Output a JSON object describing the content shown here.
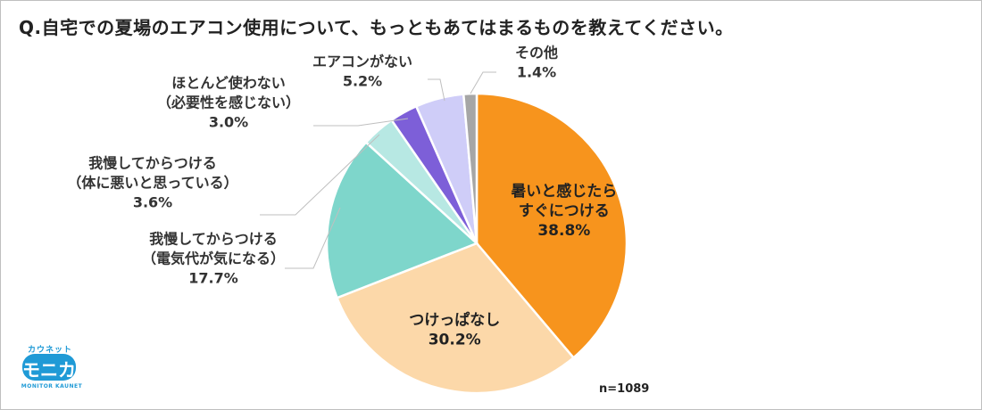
{
  "title": "Q.自宅での夏場のエアコン使用について、もっともあてはまるものを教えてください。",
  "note": "n=1089",
  "logo": {
    "top_text": "カウネット",
    "main_text": "モニカ",
    "bottom_text": "MONITOR KAUNET"
  },
  "colors": {
    "slices": [
      "#f7941d",
      "#fcd8a9",
      "#7ed6cb",
      "#b7e8e3",
      "#7d5fd8",
      "#cfcdf8",
      "#a6a6a6"
    ],
    "accent": "#1f9ad6"
  },
  "chart_data": {
    "type": "pie",
    "title": "Q.自宅での夏場のエアコン使用について、もっともあてはまるものを教えてください。",
    "categories": [
      [
        "暑いと感じたら",
        "すぐにつける"
      ],
      [
        "つけっぱなし"
      ],
      [
        "我慢してからつける",
        "（電気代が気になる）"
      ],
      [
        "我慢してからつける",
        "（体に悪いと思っている）"
      ],
      [
        "ほとんど使わない",
        "（必要性を感じない）"
      ],
      [
        "エアコンがない"
      ],
      [
        "その他"
      ]
    ],
    "values": [
      38.8,
      30.2,
      17.7,
      3.6,
      3.0,
      5.2,
      1.4
    ],
    "value_labels": [
      "38.8%",
      "30.2%",
      "17.7%",
      "3.6%",
      "3.0%",
      "5.2%",
      "1.4%"
    ],
    "start": "12 o'clock",
    "direction": "clockwise",
    "legend": "none"
  }
}
